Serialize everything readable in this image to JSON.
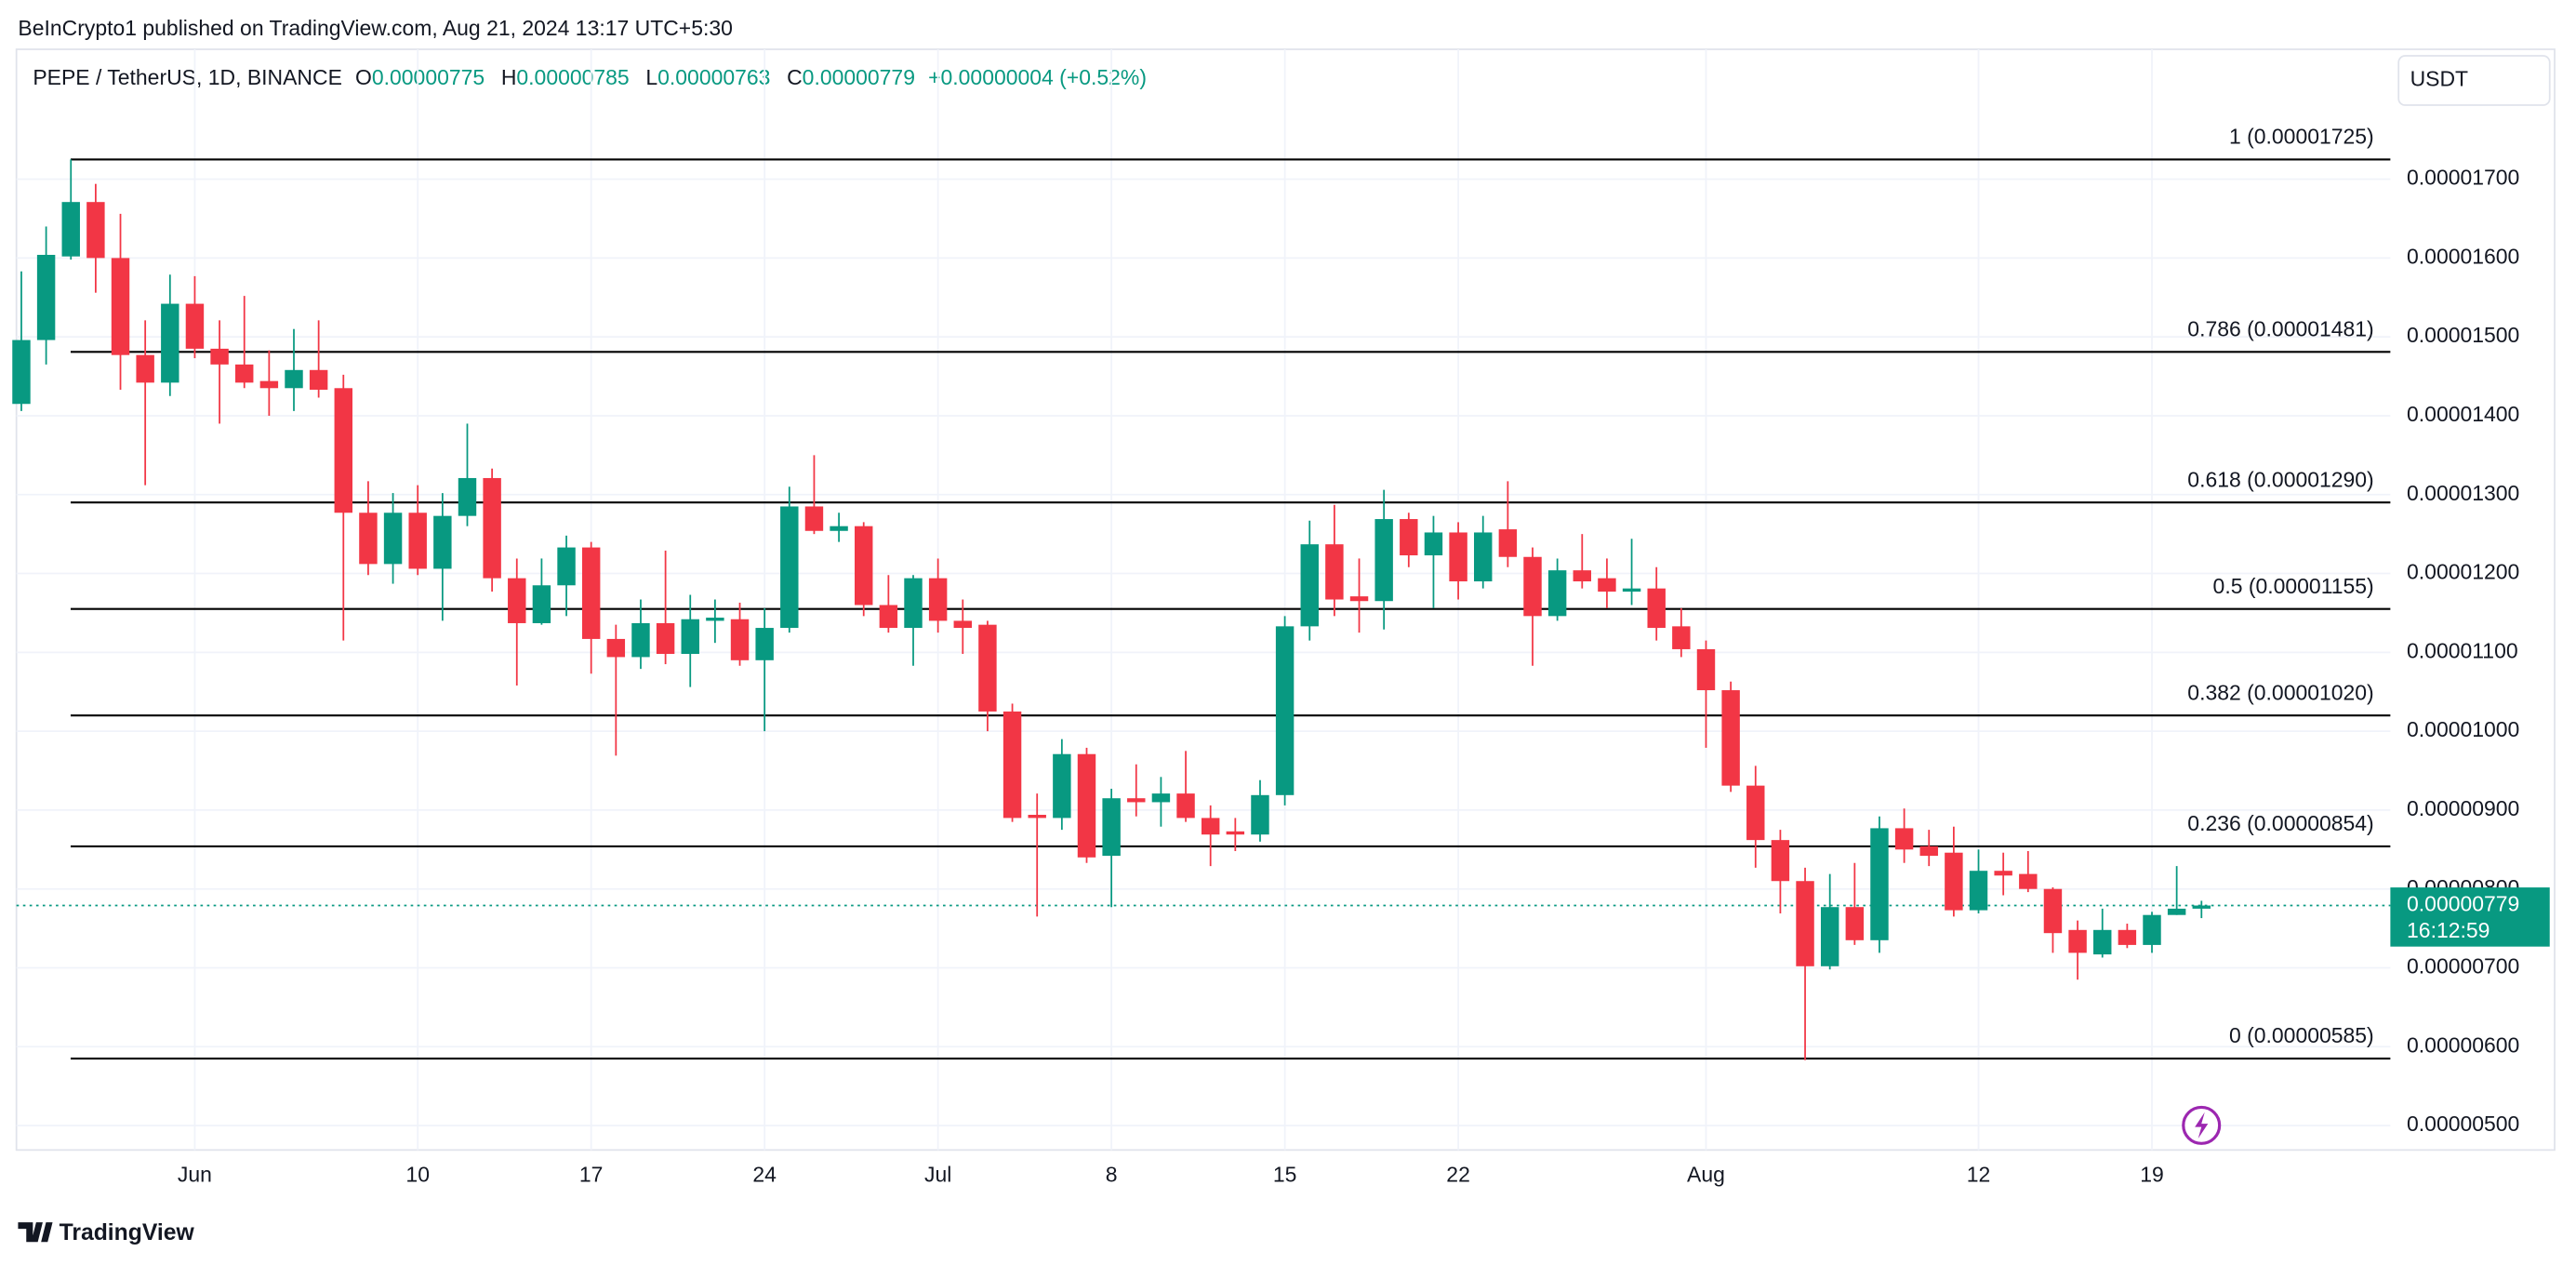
{
  "header": {
    "publisher": "BeInCrypto1 published on TradingView.com, Aug 21, 2024 13:17 UTC+5:30",
    "symbol": "PEPE / TetherUS, 1D, BINANCE",
    "ohlc": [
      {
        "key": "O",
        "value": "0.00000775"
      },
      {
        "key": "H",
        "value": "0.00000785"
      },
      {
        "key": "L",
        "value": "0.00000763"
      },
      {
        "key": "C",
        "value": "0.00000779"
      }
    ],
    "change": "+0.00000004 (+0.52%)",
    "currency": "USDT"
  },
  "footer": {
    "brand": "TradingView"
  },
  "chart_data": {
    "type": "candlestick",
    "up_color": "#089981",
    "down_color": "#f23645",
    "grid": true,
    "categories": [
      null,
      null,
      null,
      null,
      null,
      null,
      null,
      "Jun",
      null,
      null,
      null,
      null,
      null,
      null,
      null,
      null,
      "10",
      null,
      null,
      null,
      null,
      null,
      null,
      "17",
      null,
      null,
      null,
      null,
      null,
      null,
      "24",
      null,
      null,
      null,
      null,
      null,
      null,
      "Jul",
      null,
      null,
      null,
      null,
      null,
      null,
      "8",
      null,
      null,
      null,
      null,
      null,
      null,
      "15",
      null,
      null,
      null,
      null,
      null,
      null,
      "22",
      null,
      null,
      null,
      null,
      null,
      null,
      null,
      null,
      null,
      "Aug",
      null,
      null,
      null,
      null,
      null,
      null,
      null,
      null,
      null,
      null,
      "12",
      null,
      null,
      null,
      null,
      null,
      null,
      "19",
      null,
      null
    ],
    "open": [
      1.415e-05,
      1.496e-05,
      1.602e-05,
      1.671e-05,
      1.6e-05,
      1.477e-05,
      1.442e-05,
      1.542e-05,
      1.485e-05,
      1.465e-05,
      1.444e-05,
      1.435e-05,
      1.458e-05,
      1.435e-05,
      1.277e-05,
      1.212e-05,
      1.277e-05,
      1.206e-05,
      1.273e-05,
      1.321e-05,
      1.194e-05,
      1.137e-05,
      1.185e-05,
      1.233e-05,
      1.117e-05,
      1.094e-05,
      1.137e-05,
      1.098e-05,
      1.14e-05,
      1.142e-05,
      1.09e-05,
      1.131e-05,
      1.285e-05,
      1.254e-05,
      1.26e-05,
      1.16e-05,
      1.131e-05,
      1.194e-05,
      1.14e-05,
      1.135e-05,
      1.025e-05,
      8.94e-06,
      8.9e-06,
      9.71e-06,
      8.42e-06,
      9.15e-06,
      9.1e-06,
      9.21e-06,
      8.9e-06,
      8.73e-06,
      8.69e-06,
      9.19e-06,
      1.133e-05,
      1.237e-05,
      1.171e-05,
      1.165e-05,
      1.269e-05,
      1.223e-05,
      1.252e-05,
      1.19e-05,
      1.256e-05,
      1.221e-05,
      1.146e-05,
      1.204e-05,
      1.194e-05,
      1.177e-05,
      1.181e-05,
      1.133e-05,
      1.104e-05,
      1.052e-05,
      9.31e-06,
      8.62e-06,
      8.1e-06,
      7.02e-06,
      7.77e-06,
      7.35e-06,
      8.77e-06,
      8.54e-06,
      8.46e-06,
      7.73e-06,
      8.23e-06,
      8.19e-06,
      8e-06,
      7.48e-06,
      7.17e-06,
      7.48e-06,
      7.29e-06,
      7.67e-06,
      7.75e-06
    ],
    "high": [
      1.583e-05,
      1.64e-05,
      1.725e-05,
      1.694e-05,
      1.656e-05,
      1.521e-05,
      1.579e-05,
      1.577e-05,
      1.521e-05,
      1.552e-05,
      1.483e-05,
      1.51e-05,
      1.521e-05,
      1.452e-05,
      1.317e-05,
      1.302e-05,
      1.312e-05,
      1.302e-05,
      1.39e-05,
      1.333e-05,
      1.219e-05,
      1.219e-05,
      1.248e-05,
      1.24e-05,
      1.135e-05,
      1.167e-05,
      1.229e-05,
      1.173e-05,
      1.167e-05,
      1.163e-05,
      1.156e-05,
      1.31e-05,
      1.35e-05,
      1.277e-05,
      1.265e-05,
      1.198e-05,
      1.198e-05,
      1.219e-05,
      1.167e-05,
      1.14e-05,
      1.035e-05,
      9.21e-06,
      9.9e-06,
      9.79e-06,
      9.27e-06,
      9.58e-06,
      9.42e-06,
      9.75e-06,
      9.06e-06,
      8.9e-06,
      9.38e-06,
      1.146e-05,
      1.267e-05,
      1.287e-05,
      1.219e-05,
      1.306e-05,
      1.277e-05,
      1.273e-05,
      1.265e-05,
      1.273e-05,
      1.317e-05,
      1.233e-05,
      1.219e-05,
      1.25e-05,
      1.219e-05,
      1.244e-05,
      1.208e-05,
      1.156e-05,
      1.115e-05,
      1.063e-05,
      9.56e-06,
      8.75e-06,
      8.27e-06,
      8.19e-06,
      8.33e-06,
      8.92e-06,
      9.02e-06,
      8.75e-06,
      8.79e-06,
      8.5e-06,
      8.46e-06,
      8.48e-06,
      8.02e-06,
      7.6e-06,
      7.75e-06,
      7.56e-06,
      7.71e-06,
      8.29e-06,
      7.85e-06
    ],
    "low": [
      1.406e-05,
      1.465e-05,
      1.598e-05,
      1.556e-05,
      1.433e-05,
      1.312e-05,
      1.425e-05,
      1.473e-05,
      1.39e-05,
      1.435e-05,
      1.4e-05,
      1.406e-05,
      1.423e-05,
      1.115e-05,
      1.198e-05,
      1.187e-05,
      1.198e-05,
      1.14e-05,
      1.26e-05,
      1.177e-05,
      1.058e-05,
      1.135e-05,
      1.146e-05,
      1.073e-05,
      9.69e-06,
      1.079e-05,
      1.085e-05,
      1.056e-05,
      1.112e-05,
      1.083e-05,
      1e-05,
      1.125e-05,
      1.25e-05,
      1.24e-05,
      1.146e-05,
      1.125e-05,
      1.083e-05,
      1.125e-05,
      1.098e-05,
      1e-05,
      8.85e-06,
      7.65e-06,
      8.75e-06,
      8.33e-06,
      7.77e-06,
      8.92e-06,
      8.79e-06,
      8.85e-06,
      8.29e-06,
      8.48e-06,
      8.6e-06,
      9.06e-06,
      1.115e-05,
      1.146e-05,
      1.125e-05,
      1.129e-05,
      1.208e-05,
      1.156e-05,
      1.167e-05,
      1.181e-05,
      1.208e-05,
      1.083e-05,
      1.14e-05,
      1.181e-05,
      1.156e-05,
      1.16e-05,
      1.115e-05,
      1.094e-05,
      9.79e-06,
      9.23e-06,
      8.27e-06,
      7.69e-06,
      5.83e-06,
      6.98e-06,
      7.29e-06,
      7.19e-06,
      8.33e-06,
      8.29e-06,
      7.65e-06,
      7.69e-06,
      7.92e-06,
      7.96e-06,
      7.19e-06,
      6.85e-06,
      7.13e-06,
      7.25e-06,
      7.19e-06,
      7.67e-06,
      7.63e-06
    ],
    "close": [
      1.496e-05,
      1.604e-05,
      1.671e-05,
      1.6e-05,
      1.477e-05,
      1.442e-05,
      1.542e-05,
      1.485e-05,
      1.465e-05,
      1.442e-05,
      1.435e-05,
      1.458e-05,
      1.433e-05,
      1.277e-05,
      1.212e-05,
      1.277e-05,
      1.206e-05,
      1.273e-05,
      1.321e-05,
      1.194e-05,
      1.137e-05,
      1.185e-05,
      1.233e-05,
      1.117e-05,
      1.094e-05,
      1.137e-05,
      1.098e-05,
      1.142e-05,
      1.144e-05,
      1.09e-05,
      1.131e-05,
      1.285e-05,
      1.254e-05,
      1.26e-05,
      1.16e-05,
      1.131e-05,
      1.194e-05,
      1.14e-05,
      1.131e-05,
      1.025e-05,
      8.9e-06,
      8.9e-06,
      9.71e-06,
      8.4e-06,
      9.15e-06,
      9.1e-06,
      9.21e-06,
      8.9e-06,
      8.69e-06,
      8.69e-06,
      9.19e-06,
      1.133e-05,
      1.237e-05,
      1.167e-05,
      1.165e-05,
      1.269e-05,
      1.223e-05,
      1.252e-05,
      1.19e-05,
      1.252e-05,
      1.221e-05,
      1.146e-05,
      1.204e-05,
      1.19e-05,
      1.177e-05,
      1.181e-05,
      1.131e-05,
      1.104e-05,
      1.052e-05,
      9.31e-06,
      8.62e-06,
      8.1e-06,
      7.02e-06,
      7.77e-06,
      7.35e-06,
      8.77e-06,
      8.5e-06,
      8.42e-06,
      7.73e-06,
      8.23e-06,
      8.17e-06,
      8e-06,
      7.44e-06,
      7.19e-06,
      7.48e-06,
      7.29e-06,
      7.67e-06,
      7.75e-06,
      7.79e-06
    ],
    "ylim": [
      4.69e-06,
      1.798e-05
    ],
    "yticks": [
      {
        "value": 5e-06,
        "label": "0.00000500"
      },
      {
        "value": 6e-06,
        "label": "0.00000600"
      },
      {
        "value": 7e-06,
        "label": "0.00000700"
      },
      {
        "value": 8e-06,
        "label": "0.00000800"
      },
      {
        "value": 9e-06,
        "label": "0.00000900"
      },
      {
        "value": 1e-05,
        "label": "0.00001000"
      },
      {
        "value": 1.1e-05,
        "label": "0.00001100"
      },
      {
        "value": 1.2e-05,
        "label": "0.00001200"
      },
      {
        "value": 1.3e-05,
        "label": "0.00001300"
      },
      {
        "value": 1.4e-05,
        "label": "0.00001400"
      },
      {
        "value": 1.5e-05,
        "label": "0.00001500"
      },
      {
        "value": 1.6e-05,
        "label": "0.00001600"
      },
      {
        "value": 1.7e-05,
        "label": "0.00001700"
      }
    ],
    "levels": [
      {
        "value": 1.725e-05,
        "label": "1 (0.00001725)"
      },
      {
        "value": 1.481e-05,
        "label": "0.786 (0.00001481)"
      },
      {
        "value": 1.29e-05,
        "label": "0.618 (0.00001290)"
      },
      {
        "value": 1.155e-05,
        "label": "0.5 (0.00001155)"
      },
      {
        "value": 1.02e-05,
        "label": "0.382 (0.00001020)"
      },
      {
        "value": 8.54e-06,
        "label": "0.236 (0.00000854)"
      },
      {
        "value": 5.85e-06,
        "label": "0 (0.00000585)"
      }
    ],
    "last_price": {
      "value": 7.79e-06,
      "label": "0.00000779",
      "countdown": "16:12:59"
    }
  }
}
